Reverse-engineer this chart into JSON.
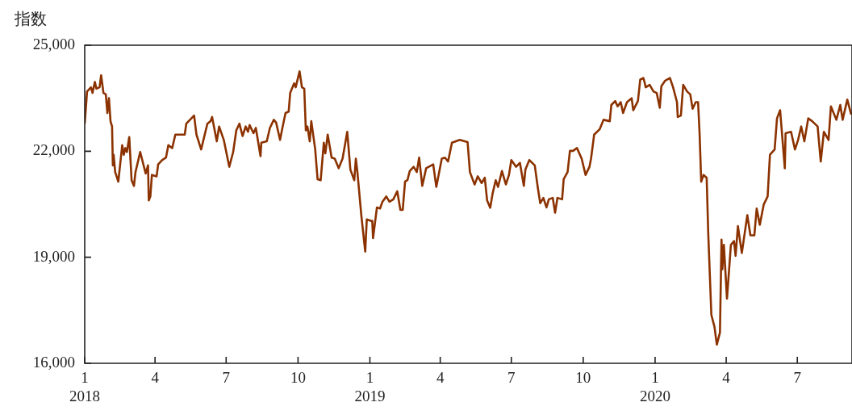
{
  "chart_data": {
    "type": "line",
    "ylabel": "指数",
    "x": [
      "2018-01-01",
      "2018-01-04",
      "2018-01-09",
      "2018-01-11",
      "2018-01-14",
      "2018-01-16",
      "2018-01-20",
      "2018-01-22",
      "2018-01-25",
      "2018-01-28",
      "2018-01-30",
      "2018-02-01",
      "2018-02-03",
      "2018-02-05",
      "2018-02-06",
      "2018-02-07",
      "2018-02-09",
      "2018-02-13",
      "2018-02-18",
      "2018-02-20",
      "2018-02-22",
      "2018-02-24",
      "2018-02-27",
      "2018-03-02",
      "2018-03-05",
      "2018-03-07",
      "2018-03-13",
      "2018-03-20",
      "2018-03-23",
      "2018-03-24",
      "2018-03-26",
      "2018-03-28",
      "2018-04-03",
      "2018-04-05",
      "2018-04-10",
      "2018-04-15",
      "2018-04-18",
      "2018-04-23",
      "2018-04-27",
      "2018-05-09",
      "2018-05-11",
      "2018-05-14",
      "2018-05-21",
      "2018-05-24",
      "2018-05-30",
      "2018-06-07",
      "2018-06-11",
      "2018-06-13",
      "2018-06-19",
      "2018-06-22",
      "2018-06-28",
      "2018-07-05",
      "2018-07-10",
      "2018-07-14",
      "2018-07-18",
      "2018-07-22",
      "2018-07-26",
      "2018-07-29",
      "2018-07-31",
      "2018-08-05",
      "2018-08-08",
      "2018-08-14",
      "2018-08-15",
      "2018-08-22",
      "2018-08-26",
      "2018-08-31",
      "2018-09-03",
      "2018-09-08",
      "2018-09-11",
      "2018-09-15",
      "2018-09-19",
      "2018-09-21",
      "2018-09-26",
      "2018-09-28",
      "2018-10-03",
      "2018-10-06",
      "2018-10-09",
      "2018-10-11",
      "2018-10-13",
      "2018-10-16",
      "2018-10-18",
      "2018-10-23",
      "2018-10-26",
      "2018-10-30",
      "2018-11-03",
      "2018-11-05",
      "2018-11-08",
      "2018-11-13",
      "2018-11-17",
      "2018-11-22",
      "2018-11-27",
      "2018-12-03",
      "2018-12-07",
      "2018-12-12",
      "2018-12-14",
      "2018-12-16",
      "2018-12-21",
      "2018-12-26",
      "2018-12-28",
      "2019-01-02",
      "2019-01-04",
      "2019-01-05",
      "2019-01-10",
      "2019-01-14",
      "2019-01-17",
      "2019-01-22",
      "2019-01-26",
      "2019-01-31",
      "2019-02-05",
      "2019-02-09",
      "2019-02-12",
      "2019-02-15",
      "2019-02-18",
      "2019-02-21",
      "2019-02-26",
      "2019-03-02",
      "2019-03-05",
      "2019-03-09",
      "2019-03-14",
      "2019-03-23",
      "2019-03-27",
      "2019-04-03",
      "2019-04-07",
      "2019-04-11",
      "2019-04-16",
      "2019-04-21",
      "2019-04-26",
      "2019-05-06",
      "2019-05-09",
      "2019-05-15",
      "2019-05-19",
      "2019-05-24",
      "2019-05-28",
      "2019-05-31",
      "2019-06-04",
      "2019-06-07",
      "2019-06-11",
      "2019-06-14",
      "2019-06-19",
      "2019-06-24",
      "2019-06-28",
      "2019-07-01",
      "2019-07-07",
      "2019-07-12",
      "2019-07-17",
      "2019-07-19",
      "2019-07-24",
      "2019-07-31",
      "2019-08-04",
      "2019-08-07",
      "2019-08-11",
      "2019-08-15",
      "2019-08-18",
      "2019-08-23",
      "2019-08-26",
      "2019-08-29",
      "2019-09-04",
      "2019-09-06",
      "2019-09-11",
      "2019-09-14",
      "2019-09-18",
      "2019-09-23",
      "2019-09-29",
      "2019-10-04",
      "2019-10-09",
      "2019-10-11",
      "2019-10-15",
      "2019-10-22",
      "2019-10-27",
      "2019-11-04",
      "2019-11-06",
      "2019-11-11",
      "2019-11-14",
      "2019-11-18",
      "2019-11-21",
      "2019-11-26",
      "2019-12-02",
      "2019-12-04",
      "2019-12-10",
      "2019-12-13",
      "2019-12-17",
      "2019-12-18",
      "2019-12-20",
      "2019-12-25",
      "2019-12-30",
      "2020-01-03",
      "2020-01-07",
      "2020-01-09",
      "2020-01-14",
      "2020-01-20",
      "2020-01-24",
      "2020-01-29",
      "2020-01-30",
      "2020-02-03",
      "2020-02-06",
      "2020-02-11",
      "2020-02-15",
      "2020-02-18",
      "2020-02-22",
      "2020-02-25",
      "2020-02-27",
      "2020-02-29",
      "2020-03-03",
      "2020-03-07",
      "2020-03-09",
      "2020-03-13",
      "2020-03-17",
      "2020-03-20",
      "2020-03-24",
      "2020-03-26",
      "2020-03-27",
      "2020-03-29",
      "2020-04-02",
      "2020-04-07",
      "2020-04-11",
      "2020-04-13",
      "2020-04-16",
      "2020-04-21",
      "2020-04-28",
      "2020-05-02",
      "2020-05-07",
      "2020-05-10",
      "2020-05-14",
      "2020-05-19",
      "2020-05-24",
      "2020-05-27",
      "2020-06-02",
      "2020-06-05",
      "2020-06-09",
      "2020-06-15",
      "2020-06-16",
      "2020-06-23",
      "2020-06-28",
      "2020-07-02",
      "2020-07-06",
      "2020-07-10",
      "2020-07-15",
      "2020-07-20",
      "2020-07-27",
      "2020-07-31",
      "2020-08-04",
      "2020-08-10",
      "2020-08-13",
      "2020-08-20",
      "2020-08-25",
      "2020-08-28",
      "2020-09-03",
      "2020-09-08"
    ],
    "series": [
      {
        "color": "#8b3200",
        "values": [
          22780,
          23690,
          23810,
          23650,
          23960,
          23770,
          23810,
          24150,
          23650,
          23610,
          23080,
          23500,
          22850,
          22700,
          21600,
          21900,
          21410,
          21140,
          22170,
          21900,
          22090,
          21980,
          22400,
          21180,
          21020,
          21410,
          21980,
          21370,
          21600,
          20610,
          20720,
          21330,
          21290,
          21630,
          21750,
          21820,
          22170,
          22090,
          22470,
          22470,
          22780,
          22850,
          23010,
          22470,
          22050,
          22780,
          22850,
          22970,
          22280,
          22700,
          22320,
          21560,
          21980,
          22590,
          22780,
          22430,
          22700,
          22550,
          22740,
          22510,
          22660,
          21860,
          22240,
          22280,
          22660,
          22890,
          22810,
          22320,
          22660,
          23080,
          23120,
          23650,
          23920,
          23810,
          24260,
          23810,
          23770,
          22590,
          22700,
          22280,
          22850,
          22050,
          21210,
          21180,
          22240,
          21940,
          22470,
          21820,
          21790,
          21520,
          21790,
          22550,
          21480,
          21180,
          21790,
          21410,
          20190,
          19160,
          20070,
          20030,
          20030,
          19540,
          20410,
          20380,
          20570,
          20720,
          20570,
          20640,
          20870,
          20340,
          20340,
          21140,
          21180,
          21440,
          21560,
          21410,
          21820,
          21020,
          21520,
          21630,
          20990,
          21790,
          21820,
          21710,
          22240,
          22280,
          22320,
          22260,
          21410,
          21060,
          21290,
          21100,
          21250,
          20610,
          20400,
          20800,
          21180,
          20990,
          21440,
          21060,
          21330,
          21750,
          21560,
          21670,
          21020,
          21480,
          21750,
          21600,
          20950,
          20530,
          20680,
          20410,
          20640,
          20680,
          20260,
          20680,
          20640,
          21210,
          21410,
          22010,
          22010,
          22090,
          21790,
          21330,
          21560,
          21790,
          22470,
          22620,
          22890,
          22850,
          23310,
          23420,
          23270,
          23390,
          23080,
          23390,
          23500,
          23160,
          23420,
          24030,
          24070,
          24000,
          23810,
          23880,
          23690,
          23650,
          23230,
          23840,
          24000,
          24070,
          23810,
          23390,
          22970,
          23010,
          23880,
          23690,
          23610,
          23200,
          23390,
          23390,
          22470,
          21140,
          21330,
          21250,
          19690,
          17370,
          17030,
          16530,
          16870,
          19500,
          18660,
          19350,
          17830,
          19350,
          19460,
          19040,
          19880,
          19120,
          20190,
          19620,
          19620,
          20380,
          19920,
          20490,
          20720,
          21900,
          22050,
          22930,
          23160,
          21520,
          22510,
          22550,
          22050,
          22320,
          22700,
          22280,
          22930,
          22850,
          22700,
          21710,
          22550,
          22320,
          23270,
          22890,
          23310,
          22890,
          23460,
          23040
        ]
      }
    ],
    "xlim": [
      "2018-01-01",
      "2020-09-09"
    ],
    "xticks": [
      {
        "value": "2018-01",
        "label": "1\n2018"
      },
      {
        "value": "2018-04",
        "label": "4"
      },
      {
        "value": "2018-07",
        "label": "7"
      },
      {
        "value": "2018-10",
        "label": "10"
      },
      {
        "value": "2019-01",
        "label": "1\n2019"
      },
      {
        "value": "2019-04",
        "label": "4"
      },
      {
        "value": "2019-07",
        "label": "7"
      },
      {
        "value": "2019-10",
        "label": "10"
      },
      {
        "value": "2020-01",
        "label": "1\n2020"
      },
      {
        "value": "2020-04",
        "label": "4"
      },
      {
        "value": "2020-07",
        "label": "7"
      }
    ],
    "ylim": [
      16000,
      25000
    ],
    "yticks": [
      {
        "value": 16000,
        "label": "16,000"
      },
      {
        "value": 19000,
        "label": "19,000"
      },
      {
        "value": 22000,
        "label": "22,000"
      },
      {
        "value": 25000,
        "label": "25,000"
      }
    ],
    "grid": false,
    "legend": false,
    "marker": "none",
    "line_style": "solid"
  }
}
